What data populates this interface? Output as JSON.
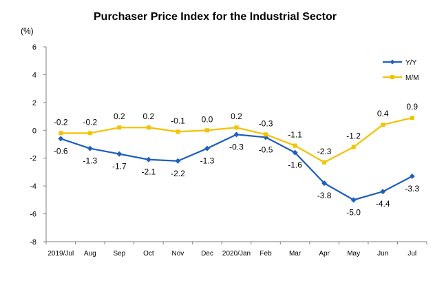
{
  "chart_data": {
    "type": "line",
    "title": "Purchaser Price Index for the Industrial  Sector",
    "ylabel": "(%)",
    "xlabel": "",
    "categories": [
      "2019/Jul",
      "Aug",
      "Sep",
      "Oct",
      "Nov",
      "Dec",
      "2020/Jan",
      "Feb",
      "Mar",
      "Apr",
      "May",
      "Jun",
      "Jul"
    ],
    "ylim": [
      -8,
      6
    ],
    "yticks": [
      "6",
      "4",
      "2",
      "0",
      "-2",
      "-4",
      "-6",
      "-8"
    ],
    "ytick_values": [
      6,
      4,
      2,
      0,
      -2,
      -4,
      -6,
      -8
    ],
    "grid": false,
    "legend_position": "top-right",
    "series": [
      {
        "name": "Y/Y",
        "color": "#1F5FBF",
        "marker": "diamond",
        "values": [
          -0.6,
          -1.3,
          -1.7,
          -2.1,
          -2.2,
          -1.3,
          -0.3,
          -0.5,
          -1.6,
          -3.8,
          -5.0,
          -4.4,
          -3.3
        ],
        "labels": [
          "-0.6",
          "-1.3",
          "-1.7",
          "-2.1",
          "-2.2",
          "-1.3",
          "-0.3",
          "-0.5",
          "-1.6",
          "-3.8",
          "-5.0",
          "-4.4",
          "-3.3"
        ]
      },
      {
        "name": "M/M",
        "color": "#F5C200",
        "marker": "square",
        "values": [
          -0.2,
          -0.2,
          0.2,
          0.2,
          -0.1,
          0.0,
          0.2,
          -0.3,
          -1.1,
          -2.3,
          -1.2,
          0.4,
          0.9
        ],
        "labels": [
          "-0.2",
          "-0.2",
          "0.2",
          "0.2",
          "-0.1",
          "0.0",
          "0.2",
          "-0.3",
          "-1.1",
          "-2.3",
          "-1.2",
          "0.4",
          "0.9"
        ]
      }
    ]
  }
}
